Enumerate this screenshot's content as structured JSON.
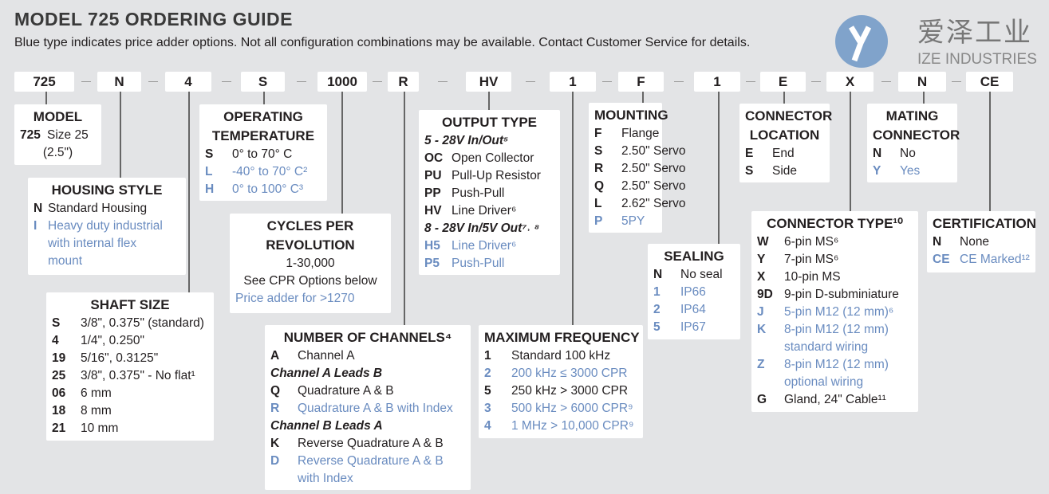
{
  "title": "MODEL 725 ORDERING GUIDE",
  "subtitle": "Blue type indicates price adder options. Not all configuration combinations may be available. Contact Customer Service for details.",
  "logo": {
    "cn": "爱泽工业",
    "en": "IZE INDUSTRIES"
  },
  "colors": {
    "blue": "#6a8cc0",
    "background": "#e3e4e6"
  },
  "codes": [
    "725",
    "N",
    "4",
    "S",
    "1000",
    "R",
    "HV",
    "1",
    "F",
    "1",
    "E",
    "X",
    "N",
    "CE"
  ],
  "sections": [
    {
      "id": "model",
      "title": [
        "MODEL"
      ],
      "rows": [
        {
          "c": "725",
          "t": "Size 25"
        },
        {
          "p": "(2.5\")"
        }
      ]
    },
    {
      "id": "housing",
      "title": [
        "HOUSING STYLE"
      ],
      "rows": [
        {
          "c": "N",
          "t": "Standard Housing"
        },
        {
          "c": "I",
          "t": "Heavy duty industrial",
          "blue": true
        },
        {
          "c": "",
          "t": "with internal flex",
          "blue": true
        },
        {
          "c": "",
          "t": "mount",
          "blue": true
        }
      ]
    },
    {
      "id": "shaft",
      "title": [
        "SHAFT SIZE"
      ],
      "rows": [
        {
          "c": "S",
          "t": "3/8\", 0.375\" (standard)"
        },
        {
          "c": "4",
          "t": "1/4\", 0.250\""
        },
        {
          "c": "19",
          "t": "5/16\", 0.3125\""
        },
        {
          "c": "25",
          "t": "3/8\", 0.375\" - No flat¹"
        },
        {
          "c": "06",
          "t": "6 mm"
        },
        {
          "c": "18",
          "t": "8 mm"
        },
        {
          "c": "21",
          "t": "10 mm"
        }
      ]
    },
    {
      "id": "temp",
      "title": [
        "OPERATING",
        "TEMPERATURE"
      ],
      "rows": [
        {
          "c": "S",
          "t": "0° to 70° C"
        },
        {
          "c": "L",
          "t": "-40° to 70° C²",
          "blue": true
        },
        {
          "c": "H",
          "t": "0° to 100° C³",
          "blue": true
        }
      ]
    },
    {
      "id": "cpr",
      "title": [
        "CYCLES PER",
        "REVOLUTION"
      ],
      "rows": [
        {
          "p": "1-30,000"
        },
        {
          "p": "See CPR Options below"
        },
        {
          "p": "Price adder for >1270",
          "blue": true
        }
      ]
    },
    {
      "id": "channels",
      "title": [
        "NUMBER OF CHANNELS⁴"
      ],
      "rows": [
        {
          "c": "A",
          "t": "Channel A"
        },
        {
          "s": "Channel A Leads B"
        },
        {
          "c": "Q",
          "t": "Quadrature A & B"
        },
        {
          "c": "R",
          "t": "Quadrature A & B with Index",
          "blue": true
        },
        {
          "s": "Channel B Leads A"
        },
        {
          "c": "K",
          "t": "Reverse Quadrature A & B"
        },
        {
          "c": "D",
          "t": "Reverse Quadrature A & B",
          "blue": true
        },
        {
          "c": "",
          "t": "with Index",
          "blue": true
        }
      ]
    },
    {
      "id": "output",
      "title": [
        "OUTPUT TYPE"
      ],
      "rows": [
        {
          "s": "5 - 28V In/Out⁵"
        },
        {
          "c": "OC",
          "t": "Open Collector"
        },
        {
          "c": "PU",
          "t": "Pull-Up Resistor"
        },
        {
          "c": "PP",
          "t": "Push-Pull"
        },
        {
          "c": "HV",
          "t": "Line Driver⁶"
        },
        {
          "s": "8 - 28V In/5V Out⁷˒ ⁸"
        },
        {
          "c": "H5",
          "t": "Line Driver⁶",
          "blue": true
        },
        {
          "c": "P5",
          "t": "Push-Pull",
          "blue": true
        }
      ]
    },
    {
      "id": "freq",
      "title": [
        "MAXIMUM FREQUENCY"
      ],
      "rows": [
        {
          "c": "1",
          "t": "Standard 100 kHz"
        },
        {
          "c": "2",
          "t": "200 kHz ≤ 3000 CPR",
          "blue": true
        },
        {
          "c": "5",
          "t": "250 kHz > 3000 CPR"
        },
        {
          "c": "3",
          "t": "500 kHz > 6000 CPR⁹",
          "blue": true
        },
        {
          "c": "4",
          "t": "1 MHz > 10,000 CPR⁹",
          "blue": true
        }
      ]
    },
    {
      "id": "mounting",
      "title": [
        "MOUNTING"
      ],
      "rows": [
        {
          "c": "F",
          "t": "Flange"
        },
        {
          "c": "S",
          "t": "2.50\" Servo"
        },
        {
          "c": "R",
          "t": "2.50\" Servo"
        },
        {
          "c": "Q",
          "t": "2.50\" Servo"
        },
        {
          "c": "L",
          "t": "2.62\" Servo"
        },
        {
          "c": "P",
          "t": "5PY",
          "blue": true
        }
      ]
    },
    {
      "id": "sealing",
      "title": [
        "SEALING"
      ],
      "rows": [
        {
          "c": "N",
          "t": "No seal"
        },
        {
          "c": "1",
          "t": "IP66",
          "blue": true
        },
        {
          "c": "2",
          "t": "IP64",
          "blue": true
        },
        {
          "c": "5",
          "t": "IP67",
          "blue": true
        }
      ]
    },
    {
      "id": "connloc",
      "title": [
        "CONNECTOR",
        "LOCATION"
      ],
      "rows": [
        {
          "c": "E",
          "t": "End"
        },
        {
          "c": "S",
          "t": "Side"
        }
      ]
    },
    {
      "id": "conntype",
      "title": [
        "CONNECTOR TYPE¹⁰"
      ],
      "rows": [
        {
          "c": "W",
          "t": "6-pin MS⁶"
        },
        {
          "c": "Y",
          "t": "7-pin MS⁶"
        },
        {
          "c": "X",
          "t": "10-pin MS"
        },
        {
          "c": "9D",
          "t": "9-pin D-subminiature"
        },
        {
          "c": "J",
          "t": "5-pin M12 (12 mm)⁶",
          "blue": true
        },
        {
          "c": "K",
          "t": "8-pin M12 (12 mm)",
          "blue": true
        },
        {
          "c": "",
          "t": "standard wiring",
          "blue": true
        },
        {
          "c": "Z",
          "t": "8-pin M12 (12 mm)",
          "blue": true
        },
        {
          "c": "",
          "t": "optional wiring",
          "blue": true
        },
        {
          "c": "G",
          "t": "Gland, 24\" Cable¹¹"
        }
      ]
    },
    {
      "id": "mating",
      "title": [
        "MATING",
        "CONNECTOR"
      ],
      "rows": [
        {
          "c": "N",
          "t": "No"
        },
        {
          "c": "Y",
          "t": "Yes",
          "blue": true
        }
      ]
    },
    {
      "id": "cert",
      "title": [
        "CERTIFICATION"
      ],
      "rows": [
        {
          "c": "N",
          "t": "None"
        },
        {
          "c": "CE",
          "t": "CE Marked¹²",
          "blue": true
        }
      ]
    }
  ]
}
